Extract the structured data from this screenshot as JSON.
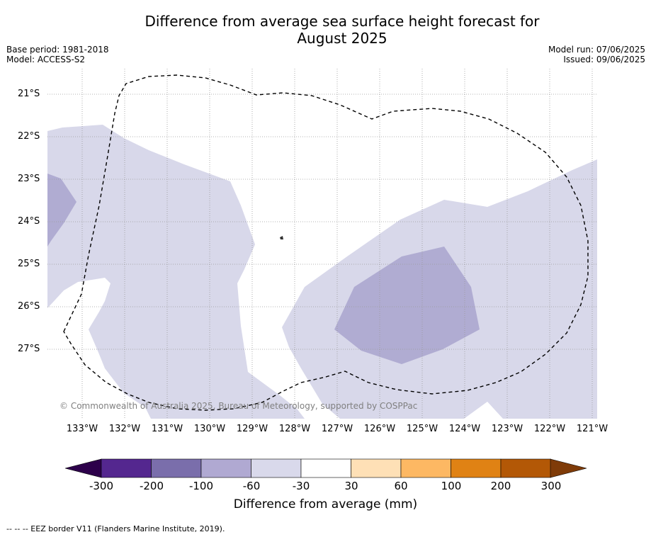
{
  "title_line1": "Difference from average sea surface height forecast for",
  "title_line2": "August 2025",
  "meta": {
    "base_period": "Base period: 1981-2018",
    "model": "Model: ACCESS-S2",
    "model_run": "Model run: 07/06/2025",
    "issued": "Issued: 09/06/2025"
  },
  "y_ticks": [
    "21°S",
    "22°S",
    "23°S",
    "24°S",
    "25°S",
    "26°S",
    "27°S"
  ],
  "x_ticks": [
    "133°W",
    "132°W",
    "131°W",
    "130°W",
    "129°W",
    "128°W",
    "127°W",
    "126°W",
    "125°W",
    "124°W",
    "123°W",
    "122°W",
    "121°W"
  ],
  "credit": "© Commonwealth of Australia 2025, Bureau of Meteorology, supported by COSPPac",
  "colorbar": {
    "labels": [
      "-300",
      "-200",
      "-100",
      "-60",
      "-30",
      "30",
      "60",
      "100",
      "200",
      "300"
    ],
    "colors": [
      "#54278f",
      "#7a6eab",
      "#b0a9d2",
      "#d9d9eb",
      "#ffffff",
      "#fee0b6",
      "#fdb863",
      "#e08214",
      "#b35806"
    ],
    "low_extend_color": "#2d004b",
    "high_extend_color": "#7f3b08",
    "title": "Difference from average (mm)"
  },
  "map_colors": {
    "light": "#d8d8ea",
    "medium": "#b0acd2"
  },
  "legend_note": "--  --  -- EEZ border V11 (Flanders Marine Institute, 2019)."
}
